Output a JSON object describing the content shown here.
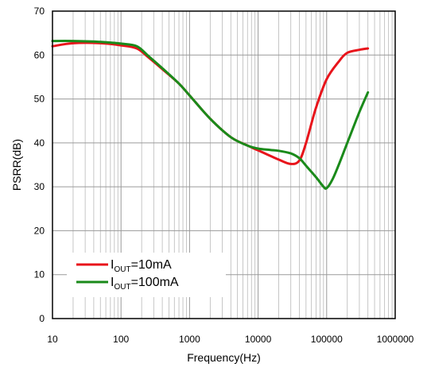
{
  "chart_data": {
    "type": "line",
    "xlabel": "Frequency(Hz)",
    "ylabel": "PSRR(dB)",
    "x_scale": "log",
    "xlim": [
      10,
      1000000
    ],
    "ylim": [
      0,
      70
    ],
    "x_ticks": [
      10,
      100,
      1000,
      10000,
      100000,
      1000000
    ],
    "x_tick_labels": [
      "10",
      "100",
      "1000",
      "10000",
      "100000",
      "1000000"
    ],
    "y_ticks": [
      0,
      10,
      20,
      30,
      40,
      50,
      60,
      70
    ],
    "y_tick_labels": [
      "0",
      "10",
      "20",
      "30",
      "40",
      "50",
      "60",
      "70"
    ],
    "grid": true,
    "legend_position": "bottom-left",
    "series": [
      {
        "name": "I_OUT=10mA",
        "legend_main": "I",
        "legend_sub": "OUT",
        "legend_rest": "=10mA",
        "color": "#e8141b",
        "x": [
          10,
          20,
          50,
          100,
          170,
          250,
          400,
          700,
          1000,
          2000,
          4000,
          7000,
          10000,
          20000,
          30000,
          40000,
          50000,
          70000,
          100000,
          150000,
          200000,
          300000,
          400000
        ],
        "y": [
          62.0,
          62.7,
          62.7,
          62.2,
          61.5,
          59.5,
          56.8,
          53.5,
          50.8,
          45.5,
          41.3,
          39.4,
          38.3,
          36.2,
          35.2,
          36.0,
          40.0,
          48.0,
          54.5,
          58.5,
          60.5,
          61.2,
          61.5
        ]
      },
      {
        "name": "I_OUT=100mA",
        "legend_main": "I",
        "legend_sub": "OUT",
        "legend_rest": "=100mA",
        "color": "#1a8a1a",
        "x": [
          10,
          20,
          50,
          100,
          170,
          250,
          400,
          700,
          1000,
          2000,
          4000,
          7000,
          10000,
          15000,
          20000,
          30000,
          40000,
          50000,
          70000,
          90000,
          100000,
          120000,
          150000,
          200000,
          300000,
          400000
        ],
        "y": [
          63.2,
          63.2,
          63.0,
          62.6,
          62.0,
          59.8,
          57.0,
          53.5,
          50.8,
          45.5,
          41.3,
          39.4,
          38.7,
          38.4,
          38.2,
          37.6,
          36.5,
          34.8,
          32.2,
          30.0,
          29.7,
          31.5,
          35.0,
          40.0,
          47.0,
          51.5
        ]
      }
    ]
  }
}
